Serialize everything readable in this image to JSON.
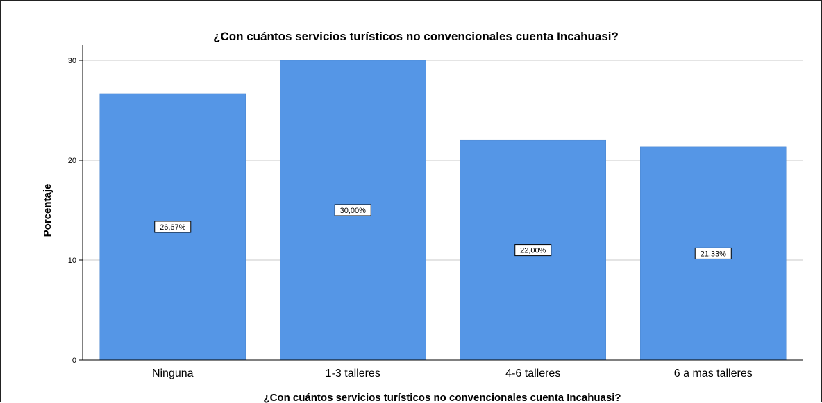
{
  "chart_data": {
    "type": "bar",
    "title": "¿Con cuántos servicios turísticos no convencionales cuenta Incahuasi?",
    "xlabel": "¿Con cuántos servicios turísticos no convencionales cuenta Incahuasi?",
    "ylabel": "Porcentaje",
    "categories": [
      "Ninguna",
      "1-3 talleres",
      "4-6 talleres",
      "6 a mas talleres"
    ],
    "values": [
      26.67,
      30.0,
      22.0,
      21.33
    ],
    "data_labels": [
      "26,67%",
      "30,00%",
      "22,00%",
      "21,33%"
    ],
    "yticks": [
      0,
      10,
      20,
      30
    ],
    "ylim": [
      0,
      30
    ],
    "grid": true,
    "bar_color": "#5596e6",
    "grid_color": "#c8c8c8"
  }
}
